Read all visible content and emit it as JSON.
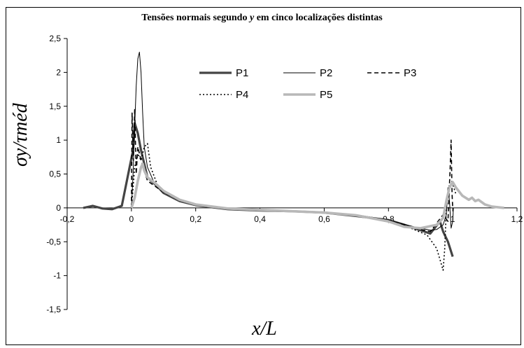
{
  "chart_data": {
    "type": "line",
    "title_pre": "Tensões normais segundo ",
    "title_var": "y",
    "title_post": " em cinco localizações distintas",
    "xlabel": "x/L",
    "ylabel": "σy/τméd",
    "xlim": [
      -0.2,
      1.2
    ],
    "ylim": [
      -1.5,
      2.5
    ],
    "x_ticks": [
      "-0,2",
      "0",
      "0,2",
      "0,4",
      "0,6",
      "0,8",
      "1",
      "1,2"
    ],
    "y_ticks": [
      "2,5",
      "2",
      "1,5",
      "1",
      "0,5",
      "0",
      "-0,5",
      "-1",
      "-1,5"
    ],
    "legend": "top-center",
    "series": [
      {
        "name": "P1",
        "color": "#444444",
        "style": "solid-thick",
        "points": [
          [
            -0.15,
            0
          ],
          [
            -0.12,
            0.03
          ],
          [
            -0.09,
            -0.01
          ],
          [
            -0.06,
            -0.02
          ],
          [
            -0.03,
            0.03
          ],
          [
            -0.01,
            0.5
          ],
          [
            0.005,
            0.85
          ],
          [
            0.01,
            1.25
          ],
          [
            0.02,
            1.1
          ],
          [
            0.03,
            0.85
          ],
          [
            0.05,
            0.45
          ],
          [
            0.08,
            0.32
          ],
          [
            0.1,
            0.22
          ],
          [
            0.15,
            0.1
          ],
          [
            0.2,
            0.04
          ],
          [
            0.3,
            -0.02
          ],
          [
            0.4,
            -0.04
          ],
          [
            0.5,
            -0.05
          ],
          [
            0.6,
            -0.07
          ],
          [
            0.7,
            -0.12
          ],
          [
            0.8,
            -0.18
          ],
          [
            0.85,
            -0.25
          ],
          [
            0.88,
            -0.3
          ],
          [
            0.9,
            -0.33
          ],
          [
            0.93,
            -0.38
          ],
          [
            0.96,
            -0.2
          ],
          [
            0.97,
            -0.35
          ],
          [
            0.985,
            -0.5
          ],
          [
            1.0,
            -0.72
          ]
        ]
      },
      {
        "name": "P2",
        "color": "#000000",
        "style": "solid-thin",
        "points": [
          [
            0.0,
            0
          ],
          [
            0.005,
            0.5
          ],
          [
            0.01,
            1.2
          ],
          [
            0.015,
            1.8
          ],
          [
            0.02,
            2.2
          ],
          [
            0.025,
            2.3
          ],
          [
            0.03,
            2.0
          ],
          [
            0.035,
            1.4
          ],
          [
            0.04,
            0.9
          ],
          [
            0.05,
            0.6
          ],
          [
            0.07,
            0.38
          ],
          [
            0.1,
            0.25
          ],
          [
            0.15,
            0.12
          ],
          [
            0.2,
            0.05
          ],
          [
            0.3,
            -0.01
          ],
          [
            0.4,
            -0.03
          ],
          [
            0.5,
            -0.05
          ],
          [
            0.6,
            -0.06
          ],
          [
            0.7,
            -0.1
          ],
          [
            0.8,
            -0.18
          ],
          [
            0.88,
            -0.28
          ],
          [
            0.93,
            -0.33
          ],
          [
            0.95,
            -0.32
          ],
          [
            0.97,
            -0.25
          ],
          [
            0.98,
            -0.1
          ],
          [
            0.985,
            0.3
          ],
          [
            0.99,
            0.1
          ],
          [
            0.995,
            -0.3
          ],
          [
            1.0,
            -0.2
          ],
          [
            1.002,
            0
          ]
        ]
      },
      {
        "name": "P3",
        "color": "#000000",
        "style": "dashed",
        "points": [
          [
            0.0,
            0
          ],
          [
            0.002,
            1.4
          ],
          [
            0.006,
            0.7
          ],
          [
            0.01,
            1.45
          ],
          [
            0.015,
            0.5
          ],
          [
            0.02,
            0.9
          ],
          [
            0.03,
            0.7
          ],
          [
            0.05,
            0.4
          ],
          [
            0.1,
            0.23
          ],
          [
            0.15,
            0.11
          ],
          [
            0.2,
            0.04
          ],
          [
            0.3,
            -0.02
          ],
          [
            0.4,
            -0.04
          ],
          [
            0.5,
            -0.05
          ],
          [
            0.6,
            -0.07
          ],
          [
            0.7,
            -0.11
          ],
          [
            0.8,
            -0.18
          ],
          [
            0.88,
            -0.3
          ],
          [
            0.93,
            -0.35
          ],
          [
            0.97,
            -0.1
          ],
          [
            0.985,
            -0.2
          ],
          [
            0.992,
            0.6
          ],
          [
            0.995,
            1.0
          ],
          [
            0.998,
            0.2
          ],
          [
            1.0,
            0
          ]
        ]
      },
      {
        "name": "P4",
        "color": "#000000",
        "style": "dotted",
        "points": [
          [
            0.0,
            0
          ],
          [
            0.01,
            0.6
          ],
          [
            0.02,
            0.8
          ],
          [
            0.03,
            0.7
          ],
          [
            0.04,
            0.9
          ],
          [
            0.05,
            0.95
          ],
          [
            0.06,
            0.6
          ],
          [
            0.08,
            0.35
          ],
          [
            0.1,
            0.25
          ],
          [
            0.15,
            0.12
          ],
          [
            0.2,
            0.05
          ],
          [
            0.3,
            -0.01
          ],
          [
            0.4,
            -0.03
          ],
          [
            0.5,
            -0.05
          ],
          [
            0.6,
            -0.07
          ],
          [
            0.7,
            -0.11
          ],
          [
            0.8,
            -0.2
          ],
          [
            0.87,
            -0.3
          ],
          [
            0.92,
            -0.4
          ],
          [
            0.95,
            -0.6
          ],
          [
            0.97,
            -0.92
          ],
          [
            0.975,
            -0.6
          ],
          [
            0.98,
            0
          ],
          [
            0.99,
            0.35
          ],
          [
            1.0,
            0.35
          ],
          [
            1.01,
            0.2
          ]
        ]
      },
      {
        "name": "P5",
        "color": "#b8b8b8",
        "style": "solid-thick-light",
        "points": [
          [
            0.0,
            0
          ],
          [
            0.01,
            0.15
          ],
          [
            0.02,
            0.4
          ],
          [
            0.03,
            0.6
          ],
          [
            0.035,
            0.65
          ],
          [
            0.04,
            0.55
          ],
          [
            0.05,
            0.45
          ],
          [
            0.07,
            0.38
          ],
          [
            0.1,
            0.25
          ],
          [
            0.15,
            0.12
          ],
          [
            0.2,
            0.05
          ],
          [
            0.3,
            -0.01
          ],
          [
            0.4,
            -0.03
          ],
          [
            0.5,
            -0.05
          ],
          [
            0.6,
            -0.07
          ],
          [
            0.7,
            -0.11
          ],
          [
            0.8,
            -0.2
          ],
          [
            0.85,
            -0.28
          ],
          [
            0.9,
            -0.3
          ],
          [
            0.95,
            -0.25
          ],
          [
            0.97,
            -0.15
          ],
          [
            0.98,
            0.1
          ],
          [
            0.99,
            0.3
          ],
          [
            1.0,
            0.38
          ],
          [
            1.01,
            0.3
          ],
          [
            1.03,
            0.18
          ],
          [
            1.05,
            0.12
          ],
          [
            1.06,
            0.15
          ],
          [
            1.07,
            0.1
          ],
          [
            1.08,
            0.12
          ],
          [
            1.1,
            0.05
          ],
          [
            1.12,
            0.02
          ],
          [
            1.14,
            0.01
          ],
          [
            1.16,
            0
          ]
        ]
      }
    ]
  }
}
